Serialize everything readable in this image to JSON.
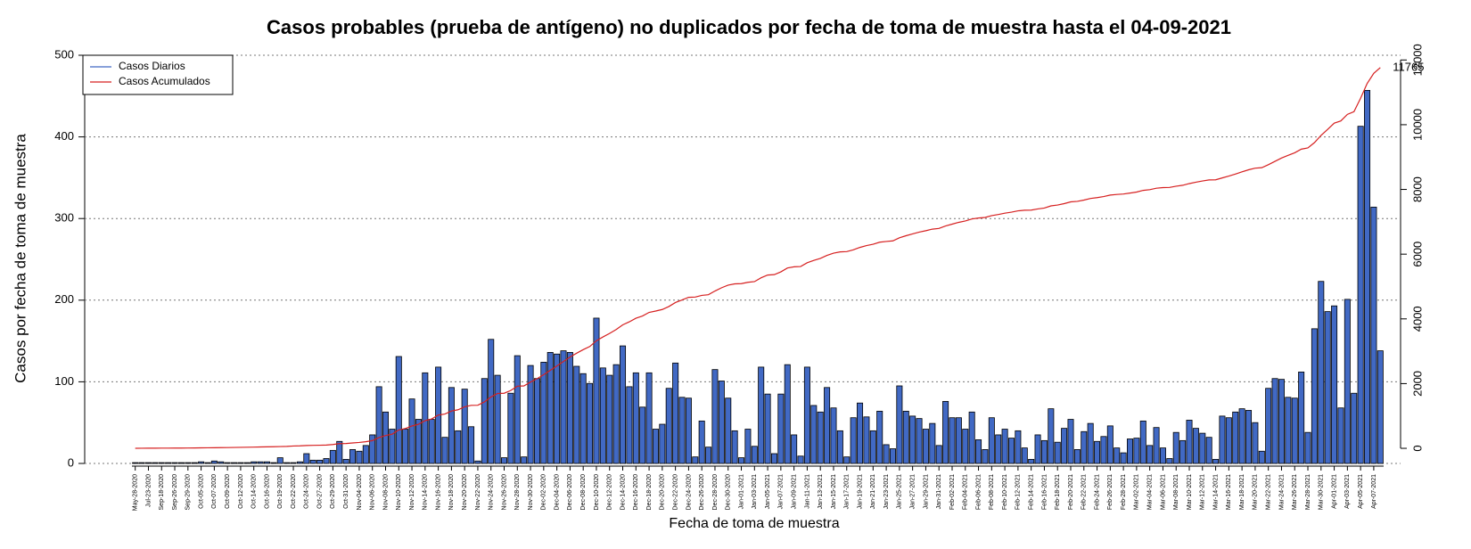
{
  "chart_data": {
    "type": "bar",
    "title": "Casos probables (prueba de antígeno) no duplicados por fecha de toma de muestra hasta el 04-09-2021",
    "x_label": "Fecha de toma de muestra",
    "y_label": "Casos por fecha de toma de muestra",
    "annotation": "11765",
    "legend": "topleft",
    "grid": true,
    "ylim": [
      0,
      500
    ],
    "yticks": [
      0,
      100,
      200,
      300,
      400,
      500
    ],
    "y2lim": [
      -467,
      12146
    ],
    "y2ticks": [
      0,
      2000,
      4000,
      6000,
      8000,
      10000,
      12000
    ],
    "categories": [
      "May-28-2020",
      null,
      "Jul-23-2020",
      null,
      "Sep-18-2020",
      null,
      "Sep-26-2020",
      null,
      "Sep-29-2020",
      null,
      "Oct-05-2020",
      null,
      "Oct-07-2020",
      null,
      "Oct-09-2020",
      null,
      "Oct-12-2020",
      null,
      "Oct-14-2020",
      null,
      "Oct-16-2020",
      null,
      "Oct-19-2020",
      null,
      "Oct-22-2020",
      null,
      "Oct-24-2020",
      null,
      "Oct-27-2020",
      null,
      "Oct-29-2020",
      null,
      "Oct-31-2020",
      null,
      "Nov-04-2020",
      null,
      "Nov-06-2020",
      null,
      "Nov-08-2020",
      null,
      "Nov-10-2020",
      null,
      "Nov-12-2020",
      null,
      "Nov-14-2020",
      null,
      "Nov-16-2020",
      null,
      "Nov-18-2020",
      null,
      "Nov-20-2020",
      null,
      "Nov-22-2020",
      null,
      "Nov-24-2020",
      null,
      "Nov-26-2020",
      null,
      "Nov-28-2020",
      null,
      "Nov-30-2020",
      null,
      "Dec-02-2020",
      null,
      "Dec-04-2020",
      null,
      "Dec-06-2020",
      null,
      "Dec-08-2020",
      null,
      "Dec-10-2020",
      null,
      "Dec-12-2020",
      null,
      "Dec-14-2020",
      null,
      "Dec-16-2020",
      null,
      "Dec-18-2020",
      null,
      "Dec-20-2020",
      null,
      "Dec-22-2020",
      null,
      "Dec-24-2020",
      null,
      "Dec-26-2020",
      null,
      "Dec-28-2020",
      null,
      "Dec-30-2020",
      null,
      "Jan-01-2021",
      null,
      "Jan-03-2021",
      null,
      "Jan-05-2021",
      null,
      "Jan-07-2021",
      null,
      "Jan-09-2021",
      null,
      "Jan-11-2021",
      null,
      "Jan-13-2021",
      null,
      "Jan-15-2021",
      null,
      "Jan-17-2021",
      null,
      "Jan-19-2021",
      null,
      "Jan-21-2021",
      null,
      "Jan-23-2021",
      null,
      "Jan-25-2021",
      null,
      "Jan-27-2021",
      null,
      "Jan-29-2021",
      null,
      "Jan-31-2021",
      null,
      "Feb-02-2021",
      null,
      "Feb-04-2021",
      null,
      "Feb-06-2021",
      null,
      "Feb-08-2021",
      null,
      "Feb-10-2021",
      null,
      "Feb-12-2021",
      null,
      "Feb-14-2021",
      null,
      "Feb-16-2021",
      null,
      "Feb-18-2021",
      null,
      "Feb-20-2021",
      null,
      "Feb-22-2021",
      null,
      "Feb-24-2021",
      null,
      "Feb-26-2021",
      null,
      "Feb-28-2021",
      null,
      "Mar-02-2021",
      null,
      "Mar-04-2021",
      null,
      "Mar-06-2021",
      null,
      "Mar-08-2021",
      null,
      "Mar-10-2021",
      null,
      "Mar-12-2021",
      null,
      "Mar-14-2021",
      null,
      "Mar-16-2021",
      null,
      "Mar-18-2021",
      null,
      "Mar-20-2021",
      null,
      "Mar-22-2021",
      null,
      "Mar-24-2021",
      null,
      "Mar-26-2021",
      null,
      "Mar-28-2021",
      null,
      "Mar-30-2021",
      null,
      "Apr-01-2021",
      null,
      "Apr-03-2021",
      null,
      "Apr-05-2021",
      null,
      "Apr-07-2021",
      null
    ],
    "series": [
      {
        "name": "Casos Diarios",
        "color": "#4169c4",
        "values": [
          1,
          1,
          1,
          1,
          1,
          1,
          1,
          1,
          1,
          1,
          2,
          1,
          3,
          2,
          1,
          1,
          1,
          1,
          2,
          2,
          2,
          1,
          7,
          1,
          1,
          2,
          12,
          4,
          4,
          6,
          16,
          27,
          5,
          17,
          15,
          22,
          35,
          94,
          63,
          42,
          131,
          42,
          79,
          54,
          111,
          54,
          118,
          32,
          93,
          40,
          91,
          45,
          3,
          104,
          152,
          108,
          7,
          86,
          132,
          8,
          120,
          104,
          124,
          136,
          134,
          138,
          136,
          119,
          110,
          98,
          178,
          117,
          108,
          121,
          144,
          94,
          111,
          69,
          111,
          42,
          48,
          92,
          123,
          81,
          80,
          8,
          52,
          20,
          115,
          101,
          80,
          40,
          7,
          42,
          21,
          118,
          85,
          12,
          85,
          121,
          35,
          9,
          118,
          71,
          63,
          93,
          68,
          40,
          8,
          56,
          74,
          57,
          40,
          64,
          23,
          18,
          95,
          64,
          58,
          55,
          42,
          49,
          22,
          76,
          56,
          56,
          42,
          63,
          29,
          17,
          56,
          35,
          42,
          31,
          40,
          19,
          5,
          35,
          28,
          67,
          26,
          43,
          54,
          17,
          39,
          49,
          27,
          33,
          46,
          19,
          13,
          30,
          31,
          52,
          22,
          44,
          19,
          6,
          38,
          28,
          53,
          43,
          37,
          32,
          5,
          58,
          56,
          63,
          67,
          65,
          50,
          15,
          92,
          104,
          103,
          81,
          80,
          112,
          38,
          165,
          223,
          186,
          193,
          68,
          201,
          86,
          413,
          457,
          314,
          138
        ]
      },
      {
        "name": "Casos Acumulados",
        "color": "#d62020",
        "axis": "y2",
        "values": [
          2,
          3,
          4,
          5,
          6,
          7,
          8,
          9,
          10,
          12,
          14,
          16,
          18,
          21,
          24,
          27,
          30,
          34,
          38,
          42,
          46,
          50,
          55,
          60,
          72,
          76,
          88,
          92,
          96,
          102,
          118,
          145,
          150,
          167,
          182,
          204,
          239,
          333,
          396,
          438,
          569,
          611,
          690,
          744,
          855,
          909,
          1027,
          1059,
          1152,
          1192,
          1283,
          1328,
          1331,
          1435,
          1587,
          1695,
          1702,
          1788,
          1920,
          1928,
          2048,
          2152,
          2276,
          2412,
          2546,
          2684,
          2820,
          2939,
          3049,
          3147,
          3325,
          3442,
          3550,
          3671,
          3815,
          3909,
          4020,
          4089,
          4200,
          4242,
          4290,
          4382,
          4505,
          4586,
          4666,
          4674,
          4726,
          4746,
          4861,
          4962,
          5042,
          5082,
          5089,
          5131,
          5152,
          5270,
          5355,
          5367,
          5452,
          5573,
          5608,
          5617,
          5735,
          5806,
          5869,
          5962,
          6030,
          6070,
          6078,
          6134,
          6208,
          6265,
          6305,
          6369,
          6392,
          6410,
          6505,
          6569,
          6627,
          6682,
          6724,
          6773,
          6795,
          6871,
          6927,
          6983,
          7025,
          7088,
          7117,
          7134,
          7190,
          7225,
          7267,
          7298,
          7338,
          7357,
          7362,
          7397,
          7425,
          7492,
          7518,
          7561,
          7615,
          7632,
          7671,
          7720,
          7747,
          7780,
          7826,
          7845,
          7858,
          7888,
          7919,
          7971,
          7993,
          8037,
          8056,
          8062,
          8100,
          8128,
          8181,
          8224,
          8261,
          8293,
          8298,
          8356,
          8412,
          8475,
          8542,
          8607,
          8657,
          8672,
          8764,
          8868,
          8971,
          9052,
          9132,
          9244,
          9282,
          9447,
          9670,
          9856,
          10049,
          10117,
          10318,
          10404,
          10817,
          11274,
          11588,
          11765
        ]
      }
    ]
  }
}
